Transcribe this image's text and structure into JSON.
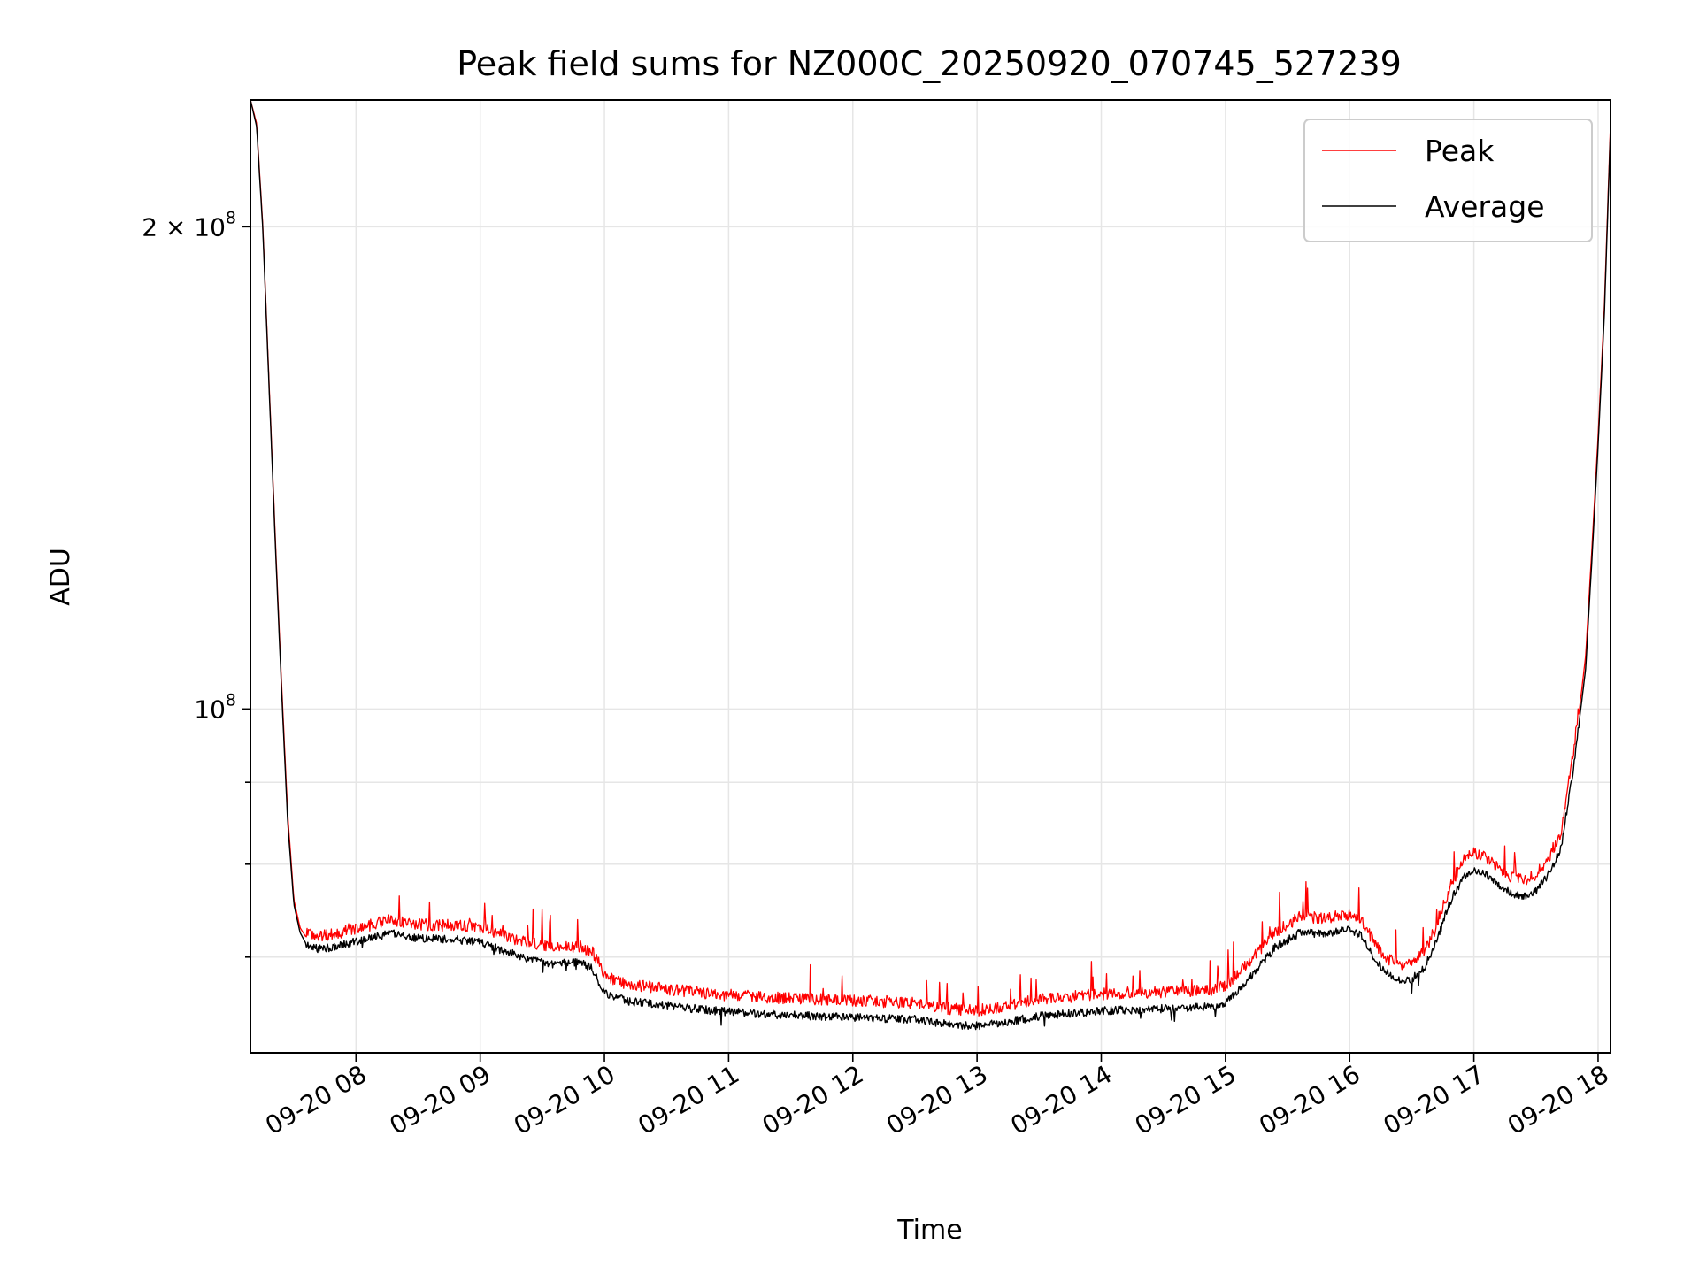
{
  "chart_data": {
    "type": "line",
    "title": "Peak field sums for NZ000C_20250920_070745_527239",
    "xlabel": "Time",
    "ylabel": "ADU",
    "x_unit": "hours (2025-09-20)",
    "xlim": [
      7.15,
      18.1
    ],
    "ylim": [
      61000000,
      240000000
    ],
    "y_scale": "log",
    "grid": true,
    "legend_position": "top-right",
    "x_ticks": [
      {
        "value": 8,
        "label": "09-20 08"
      },
      {
        "value": 9,
        "label": "09-20 09"
      },
      {
        "value": 10,
        "label": "09-20 10"
      },
      {
        "value": 11,
        "label": "09-20 11"
      },
      {
        "value": 12,
        "label": "09-20 12"
      },
      {
        "value": 13,
        "label": "09-20 13"
      },
      {
        "value": 14,
        "label": "09-20 14"
      },
      {
        "value": 15,
        "label": "09-20 15"
      },
      {
        "value": 16,
        "label": "09-20 16"
      },
      {
        "value": 17,
        "label": "09-20 17"
      },
      {
        "value": 18,
        "label": "09-20 18"
      }
    ],
    "y_major_ticks": [
      {
        "value": 100000000,
        "base": "10",
        "exp": "8",
        "prefix": ""
      },
      {
        "value": 200000000,
        "base": "10",
        "exp": "8",
        "prefix": "2 × "
      }
    ],
    "y_minor_ticks": [
      70000000,
      80000000,
      90000000
    ],
    "series": [
      {
        "name": "Peak",
        "color": "#ff0000",
        "x": [
          7.15,
          7.2,
          7.25,
          7.3,
          7.35,
          7.4,
          7.45,
          7.5,
          7.55,
          7.6,
          7.7,
          7.8,
          7.9,
          8.0,
          8.1,
          8.2,
          8.3,
          8.4,
          8.5,
          8.6,
          8.8,
          9.0,
          9.2,
          9.4,
          9.6,
          9.8,
          9.9,
          10.0,
          10.2,
          10.5,
          10.8,
          11.0,
          11.5,
          12.0,
          12.5,
          12.8,
          13.0,
          13.2,
          13.5,
          14.0,
          14.5,
          14.9,
          15.0,
          15.2,
          15.4,
          15.6,
          15.8,
          16.0,
          16.1,
          16.2,
          16.3,
          16.4,
          16.5,
          16.6,
          16.7,
          16.8,
          16.9,
          17.0,
          17.1,
          17.2,
          17.3,
          17.4,
          17.5,
          17.6,
          17.7,
          17.75,
          17.8,
          17.85,
          17.9,
          17.95,
          18.0,
          18.05,
          18.1
        ],
        "y": [
          240000000,
          232000000,
          200000000,
          160000000,
          128000000,
          104000000,
          86000000,
          76000000,
          73000000,
          72000000,
          71500000,
          71700000,
          72000000,
          72300000,
          72600000,
          73000000,
          73200000,
          73000000,
          72700000,
          72700000,
          72600000,
          72400000,
          71500000,
          70800000,
          70300000,
          70500000,
          70000000,
          67500000,
          66700000,
          66300000,
          65900000,
          65700000,
          65400000,
          65200000,
          65000000,
          64400000,
          64300000,
          64600000,
          65300000,
          65800000,
          66000000,
          66200000,
          66600000,
          69000000,
          72000000,
          73500000,
          73400000,
          73800000,
          73000000,
          70800000,
          69300000,
          68600000,
          68700000,
          70000000,
          72500000,
          76500000,
          79500000,
          80800000,
          80000000,
          79000000,
          77800000,
          77500000,
          78200000,
          80000000,
          83000000,
          88000000,
          93000000,
          100000000,
          108000000,
          126000000,
          148000000,
          178000000,
          232000000
        ]
      },
      {
        "name": "Average",
        "color": "#000000",
        "x": [
          7.15,
          7.2,
          7.25,
          7.3,
          7.35,
          7.4,
          7.45,
          7.5,
          7.55,
          7.6,
          7.7,
          7.8,
          7.9,
          8.0,
          8.1,
          8.2,
          8.3,
          8.4,
          8.5,
          8.6,
          8.8,
          9.0,
          9.2,
          9.4,
          9.6,
          9.8,
          9.9,
          10.0,
          10.2,
          10.5,
          10.8,
          11.0,
          11.5,
          12.0,
          12.5,
          12.8,
          13.0,
          13.2,
          13.5,
          14.0,
          14.5,
          14.9,
          15.0,
          15.2,
          15.4,
          15.6,
          15.8,
          16.0,
          16.1,
          16.2,
          16.3,
          16.4,
          16.5,
          16.6,
          16.7,
          16.8,
          16.9,
          17.0,
          17.1,
          17.2,
          17.3,
          17.4,
          17.5,
          17.6,
          17.7,
          17.75,
          17.8,
          17.85,
          17.9,
          17.95,
          18.0,
          18.05,
          18.1
        ],
        "y": [
          240000000,
          231000000,
          199000000,
          159000000,
          127000000,
          103000000,
          85000000,
          75500000,
          72500000,
          71300000,
          70800000,
          71000000,
          71300000,
          71600000,
          71900000,
          72200000,
          72400000,
          72200000,
          71900000,
          71900000,
          71800000,
          71500000,
          70600000,
          69800000,
          69300000,
          69500000,
          68900000,
          66500000,
          65700000,
          65300000,
          64900000,
          64700000,
          64400000,
          64200000,
          64000000,
          63500000,
          63400000,
          63700000,
          64300000,
          64800000,
          65000000,
          65200000,
          65600000,
          68000000,
          71000000,
          72500000,
          72400000,
          72900000,
          72100000,
          69900000,
          68400000,
          67700000,
          67800000,
          69000000,
          71500000,
          75500000,
          78200000,
          79500000,
          78800000,
          77800000,
          76600000,
          76300000,
          77000000,
          78800000,
          81800000,
          86600000,
          91500000,
          98500000,
          106000000,
          124000000,
          146000000,
          176000000,
          230000000
        ]
      }
    ]
  }
}
